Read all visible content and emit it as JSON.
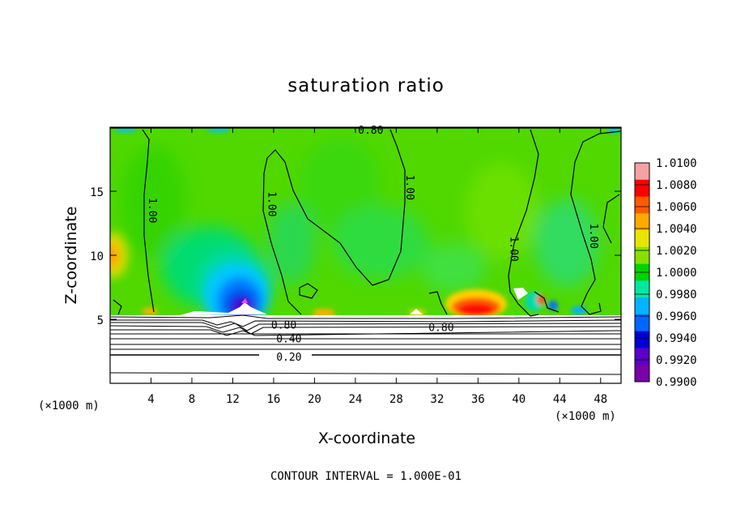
{
  "chart_data": {
    "type": "heatmap",
    "title": "saturation ratio",
    "xlabel": "X-coordinate",
    "ylabel": "Z-coordinate",
    "x_unit_left": "(×1000 m)",
    "x_unit_right": "(×1000 m)",
    "footer": "CONTOUR INTERVAL = 1.000E-01",
    "xlim": [
      0,
      50
    ],
    "ylim": [
      0,
      20
    ],
    "xticks": [
      4,
      8,
      12,
      16,
      20,
      24,
      28,
      32,
      36,
      40,
      44,
      48
    ],
    "yticks": [
      5,
      10,
      15
    ],
    "colorbar": {
      "labels": [
        "1.0100",
        "1.0080",
        "1.0060",
        "1.0040",
        "1.0020",
        "1.0000",
        "0.9980",
        "0.9960",
        "0.9940",
        "0.9920",
        "0.9900"
      ],
      "colors": [
        "#f4a3a3",
        "#ff0000",
        "#ff5a00",
        "#ffaa00",
        "#e7e600",
        "#88e000",
        "#00d200",
        "#00e8a0",
        "#00b4ff",
        "#0066ff",
        "#0000d2",
        "#5a00c8",
        "#7a00a8"
      ]
    },
    "contour_labels": [
      {
        "text": "0.80",
        "x": 25.5,
        "y": 19.8
      },
      {
        "text": "1.00",
        "x": 3.8,
        "y": 13.5
      },
      {
        "text": "1.00",
        "x": 15.5,
        "y": 14.0
      },
      {
        "text": "1.00",
        "x": 29.0,
        "y": 15.3
      },
      {
        "text": "1.00",
        "x": 39.2,
        "y": 10.5
      },
      {
        "text": "1.00",
        "x": 47.0,
        "y": 11.5
      },
      {
        "text": "0.80",
        "x": 17.0,
        "y": 4.6
      },
      {
        "text": "0.40",
        "x": 17.5,
        "y": 3.5
      },
      {
        "text": "0.20",
        "x": 17.5,
        "y": 2.1
      },
      {
        "text": "0.80",
        "x": 32.4,
        "y": 4.4
      }
    ]
  }
}
